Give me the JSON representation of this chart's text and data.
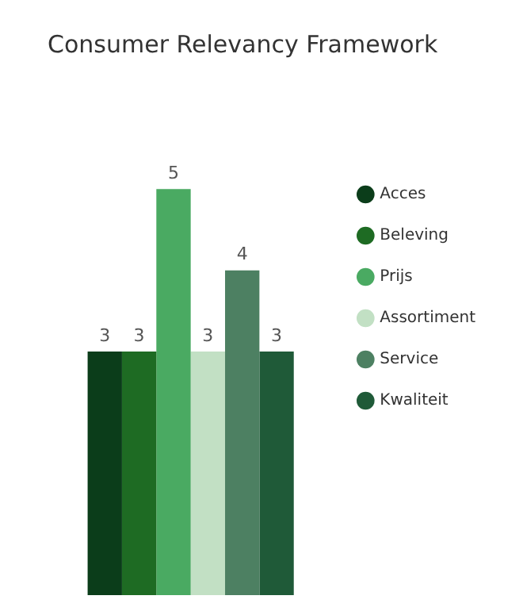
{
  "chart_data": {
    "type": "bar",
    "title": "Consumer Relevancy Framework",
    "categories": [
      null
    ],
    "series": [
      {
        "name": "Acces",
        "color": "#0b3d1a",
        "values": [
          3
        ]
      },
      {
        "name": "Beleving",
        "color": "#1e6b23",
        "values": [
          3
        ]
      },
      {
        "name": "Prijs",
        "color": "#4aaa62",
        "values": [
          5
        ]
      },
      {
        "name": "Assortiment",
        "color": "#c2e0c4",
        "values": [
          3
        ]
      },
      {
        "name": "Service",
        "color": "#4d8062",
        "values": [
          4
        ]
      },
      {
        "name": "Kwaliteit",
        "color": "#1f5a38",
        "values": [
          3
        ]
      }
    ],
    "data_labels": true,
    "legend": "right"
  }
}
